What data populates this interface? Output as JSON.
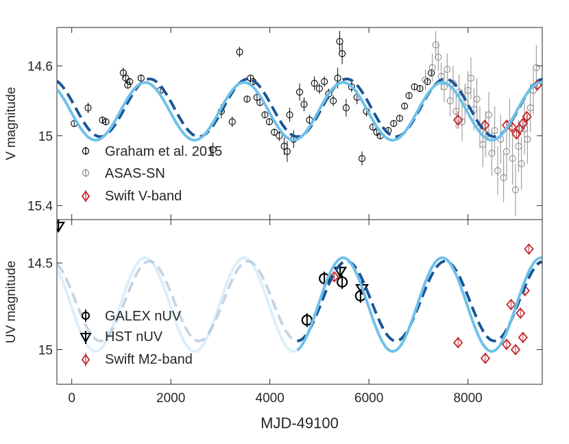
{
  "chart_data": [
    {
      "type": "scatter",
      "panel": "top",
      "ylabel": "V magnitude",
      "xlabel": "",
      "xlim": [
        -300,
        9500
      ],
      "ylim": [
        15.48,
        14.38
      ],
      "y_reversed": true,
      "yticks": [
        14.6,
        15,
        15.4
      ],
      "ytick_labels": [
        "14.6",
        "15",
        "15.4"
      ],
      "legend": {
        "placement": "bottom-left",
        "entries": [
          "Graham et al. 2015",
          "ASAS-SN",
          "Swift V-band"
        ]
      },
      "series": [
        {
          "name": "Graham et al. 2015",
          "color": "#000000",
          "marker": "circle",
          "x": [
            50,
            330,
            620,
            690,
            1040,
            1090,
            1130,
            1170,
            1400,
            1790,
            2850,
            3020,
            3240,
            3390,
            3540,
            3610,
            3660,
            3740,
            3800,
            3900,
            3990,
            4090,
            4190,
            4290,
            4350,
            4400,
            4480,
            4600,
            4690,
            4800,
            4900,
            5000,
            5100,
            5190,
            5280,
            5370,
            5410,
            5460,
            5540,
            5650,
            5760,
            5860,
            5950,
            6080,
            6160,
            6230,
            6390,
            6500,
            6620,
            6720,
            6810,
            6920,
            7030,
            7180,
            7260
          ],
          "y": [
            14.93,
            14.84,
            14.91,
            14.92,
            14.64,
            14.67,
            14.71,
            14.69,
            14.67,
            14.74,
            15.08,
            14.86,
            14.92,
            14.52,
            14.79,
            14.67,
            14.69,
            14.78,
            14.81,
            14.88,
            14.92,
            14.98,
            15.0,
            15.06,
            15.09,
            14.88,
            15.02,
            14.75,
            14.82,
            14.91,
            14.7,
            14.73,
            14.69,
            14.76,
            14.8,
            14.67,
            14.46,
            14.53,
            14.84,
            14.72,
            14.78,
            15.13,
            14.86,
            14.95,
            14.98,
            15.0,
            14.97,
            14.93,
            14.9,
            14.83,
            14.77,
            14.72,
            14.73,
            14.69,
            14.64
          ],
          "error": [
            0.02,
            0.03,
            0.02,
            0.02,
            0.03,
            0.03,
            0.02,
            0.02,
            0.02,
            0.02,
            0.04,
            0.04,
            0.03,
            0.03,
            0.02,
            0.02,
            0.02,
            0.02,
            0.02,
            0.02,
            0.02,
            0.02,
            0.03,
            0.05,
            0.06,
            0.04,
            0.05,
            0.05,
            0.04,
            0.03,
            0.04,
            0.03,
            0.03,
            0.03,
            0.03,
            0.06,
            0.06,
            0.06,
            0.05,
            0.03,
            0.04,
            0.04,
            0.03,
            0.02,
            0.02,
            0.02,
            0.02,
            0.02,
            0.02,
            0.02,
            0.02,
            0.02,
            0.02,
            0.02,
            0.02
          ]
        },
        {
          "name": "ASAS-SN",
          "color": "#8c8c8c",
          "marker": "circle",
          "x": [
            7140,
            7280,
            7350,
            7400,
            7460,
            7520,
            7580,
            7640,
            7700,
            7760,
            7820,
            7880,
            7940,
            8000,
            8060,
            8120,
            8180,
            8240,
            8300,
            8360,
            8420,
            8480,
            8540,
            8600,
            8660,
            8720,
            8780,
            8840,
            8900,
            8960,
            9020,
            9080,
            9140,
            9200,
            9260,
            9320,
            9380
          ],
          "y": [
            14.68,
            14.61,
            14.48,
            14.55,
            14.66,
            14.72,
            14.62,
            14.8,
            14.7,
            14.86,
            14.75,
            14.92,
            14.81,
            14.74,
            14.67,
            14.85,
            14.79,
            14.95,
            15.05,
            14.99,
            14.88,
            15.1,
            14.97,
            15.2,
            15.02,
            15.24,
            15.09,
            14.93,
            15.13,
            15.31,
            15.06,
            15.16,
            14.96,
            15.02,
            14.84,
            14.74,
            14.61
          ],
          "error": [
            0.06,
            0.08,
            0.08,
            0.08,
            0.08,
            0.09,
            0.09,
            0.09,
            0.1,
            0.1,
            0.1,
            0.11,
            0.11,
            0.11,
            0.12,
            0.12,
            0.12,
            0.12,
            0.13,
            0.13,
            0.13,
            0.13,
            0.14,
            0.14,
            0.14,
            0.14,
            0.14,
            0.14,
            0.15,
            0.15,
            0.15,
            0.15,
            0.15,
            0.14,
            0.14,
            0.14,
            0.13
          ]
        },
        {
          "name": "Swift V-band",
          "color": "#c0282c",
          "marker": "diamond",
          "x": [
            7800,
            8340,
            8780,
            8890,
            8980,
            9040,
            9110,
            9190,
            9400
          ],
          "y": [
            14.91,
            14.94,
            14.94,
            14.95,
            14.99,
            14.96,
            14.93,
            14.89,
            14.71
          ],
          "error": [
            0.05,
            0.03,
            0.03,
            0.03,
            0.03,
            0.03,
            0.03,
            0.03,
            0.03
          ]
        }
      ],
      "models": [
        {
          "name": "model-dashed",
          "style": "dashed",
          "color": "#1a5596",
          "mean": 14.84,
          "amplitude": 0.165,
          "period": 1990,
          "x_peak": 5550
        },
        {
          "name": "model-solid",
          "style": "solid",
          "color": "#6ec1ea",
          "mean": 14.86,
          "amplitude": 0.165,
          "period": 2000,
          "x_peak": 5480
        }
      ]
    },
    {
      "type": "scatter",
      "panel": "bottom",
      "ylabel": "UV magnitude",
      "xlabel": "MJD-49100",
      "xlim": [
        -300,
        9500
      ],
      "ylim": [
        15.2,
        14.25
      ],
      "y_reversed": true,
      "xticks": [
        0,
        2000,
        4000,
        6000,
        8000
      ],
      "xtick_labels": [
        "0",
        "2000",
        "4000",
        "6000",
        "8000"
      ],
      "yticks": [
        14.5,
        15
      ],
      "ytick_labels": [
        "14.5",
        "15"
      ],
      "legend": {
        "placement": "bottom-left",
        "entries": [
          "GALEX nUV",
          "HST nUV",
          "Swift M2-band"
        ]
      },
      "series": [
        {
          "name": "GALEX nUV",
          "color": "#000000",
          "marker": "circle",
          "x": [
            4750,
            5100,
            5460,
            5830
          ],
          "y": [
            14.83,
            14.59,
            14.61,
            14.69
          ],
          "error": [
            0.04,
            0.04,
            0.04,
            0.04
          ]
        },
        {
          "name": "HST nUV",
          "color": "#000000",
          "marker": "triangle-down",
          "x": [
            -270,
            5420,
            5860
          ],
          "y": [
            14.29,
            14.55,
            14.65
          ],
          "upper_limit": true
        },
        {
          "name": "Swift M2-band",
          "color": "#c0282c",
          "marker": "diamond",
          "x": [
            5300,
            7800,
            8350,
            8780,
            8870,
            8960,
            9060,
            9110,
            9150,
            9230
          ],
          "y": [
            14.58,
            14.96,
            15.05,
            14.97,
            14.74,
            15.0,
            14.79,
            14.93,
            14.66,
            14.42
          ],
          "error": [
            0.03,
            0.03,
            0.03,
            0.03,
            0.03,
            0.03,
            0.03,
            0.03,
            0.03,
            0.03
          ]
        }
      ],
      "models": [
        {
          "name": "model-dashed",
          "style": "dashed",
          "color": "#1a5596",
          "mean": 14.72,
          "amplitude": 0.23,
          "period": 1990,
          "x_peak": 5550,
          "faded_before": 4550
        },
        {
          "name": "model-solid",
          "style": "solid",
          "color": "#6ec1ea",
          "mean": 14.74,
          "amplitude": 0.27,
          "period": 2000,
          "x_peak": 5480,
          "faded_before": 4550
        }
      ]
    }
  ]
}
